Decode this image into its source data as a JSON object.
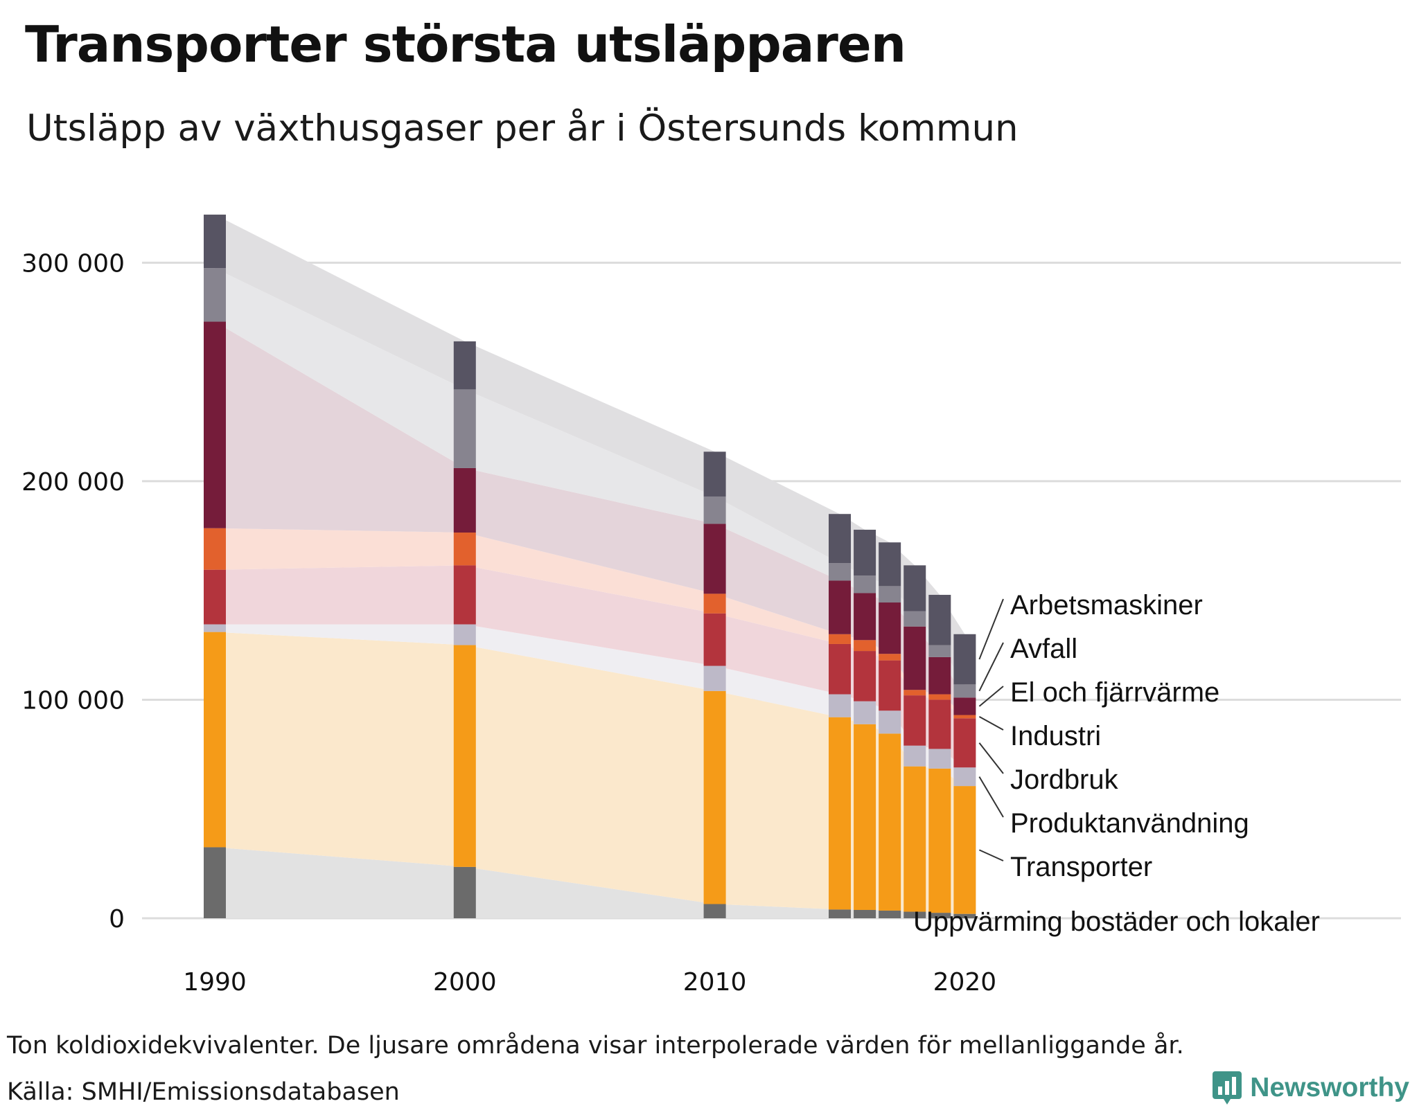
{
  "header": {
    "title": "Transporter största utsläpparen",
    "subtitle": "Utsläpp av växthusgaser per år i Östersunds kommun"
  },
  "footer": {
    "note": "Ton koldioxidekvivalenter. De ljusare områdena visar interpolerade värden för mellanliggande år.",
    "source": "Källa: SMHI/Emissionsdatabasen",
    "brand": "Newsworthy",
    "brand_color": "#3f9488"
  },
  "chart_data": {
    "type": "bar",
    "stacked": true,
    "title": "Transporter största utsläpparen",
    "subtitle": "Utsläpp av växthusgaser per år i Östersunds kommun",
    "xlabel": "",
    "ylabel": "",
    "ylim": [
      0,
      330000
    ],
    "yticks": [
      0,
      100000,
      200000,
      300000
    ],
    "ytick_labels": [
      "0",
      "100 000",
      "200 000",
      "300 000"
    ],
    "xticks": [
      1990,
      2000,
      2010,
      2020
    ],
    "xtick_labels": [
      "1990",
      "2000",
      "2010",
      "2020"
    ],
    "years": [
      1990,
      2000,
      2010,
      2015,
      2016,
      2017,
      2018,
      2019,
      2020
    ],
    "series": [
      {
        "name": "Uppvärming bostäder och lokaler",
        "color": "#6b6b6b",
        "band": "#e2e2e2",
        "values": [
          32500,
          23500,
          6500,
          4000,
          3800,
          3500,
          3000,
          2500,
          2000
        ]
      },
      {
        "name": "Transporter",
        "color": "#f59b18",
        "band": "#fbe8cc",
        "values": [
          98500,
          101500,
          97500,
          88000,
          85000,
          81000,
          66500,
          66000,
          58500
        ]
      },
      {
        "name": "Produktanvändning",
        "color": "#bdb9c8",
        "band": "#efeef2",
        "values": [
          3500,
          9500,
          11500,
          10500,
          10500,
          10500,
          9500,
          9000,
          8500
        ]
      },
      {
        "name": "Jordbruk",
        "color": "#b3343d",
        "band": "#f0d6db",
        "values": [
          25000,
          27000,
          24000,
          23000,
          23000,
          23000,
          23000,
          22500,
          22500
        ]
      },
      {
        "name": "Industri",
        "color": "#e2612d",
        "band": "#fbdfd6",
        "values": [
          19000,
          15000,
          9000,
          4500,
          5000,
          3000,
          2500,
          2500,
          1500
        ]
      },
      {
        "name": "El och fjärrvärme",
        "color": "#751c3a",
        "band": "#e4d4da",
        "values": [
          94500,
          29500,
          32000,
          24500,
          21500,
          23500,
          29000,
          17000,
          8000
        ]
      },
      {
        "name": "Avfall",
        "color": "#87848f",
        "band": "#e7e7e9",
        "values": [
          24500,
          36000,
          12500,
          8000,
          8000,
          7500,
          7000,
          5500,
          6000
        ]
      },
      {
        "name": "Arbetsmaskiner",
        "color": "#575463",
        "band": "#e0dfe1",
        "values": [
          24500,
          22000,
          20500,
          22500,
          21000,
          20000,
          21000,
          23000,
          23000
        ]
      }
    ],
    "legend_labels": [
      "Arbetsmaskiner",
      "Avfall",
      "El och fjärrvärme",
      "Industri",
      "Jordbruk",
      "Produktanvändning",
      "Transporter",
      "Uppvärming bostäder och lokaler"
    ],
    "legend_placement": "right",
    "grid": true
  }
}
